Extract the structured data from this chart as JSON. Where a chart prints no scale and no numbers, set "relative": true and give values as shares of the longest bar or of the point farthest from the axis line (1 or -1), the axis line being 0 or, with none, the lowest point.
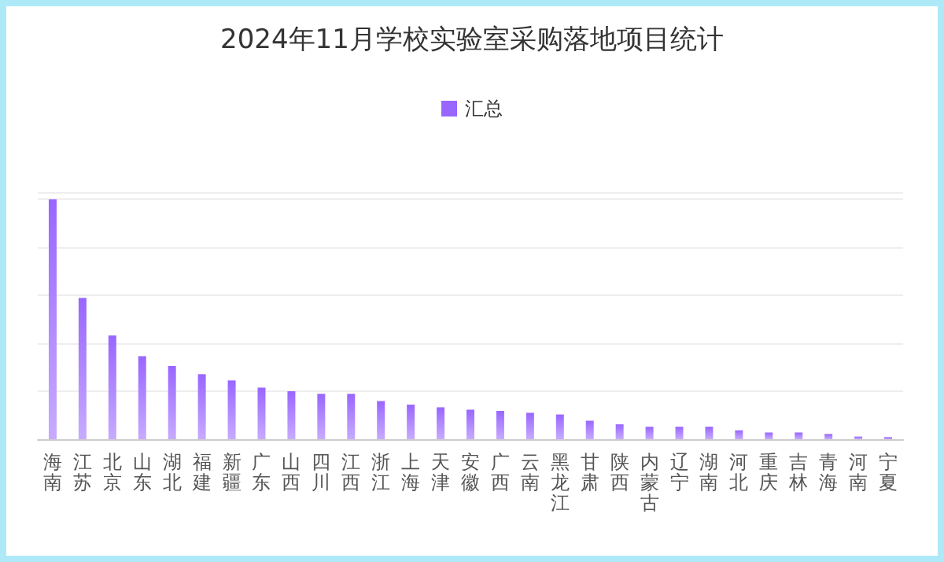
{
  "chart_data": {
    "type": "bar",
    "title": "2024年11月学校实验室采购落地项目统计",
    "relative": true,
    "grid": "y",
    "legend": "top",
    "categories": [
      "海南",
      "江苏",
      "北京",
      "山东",
      "湖北",
      "福建",
      "新疆",
      "广东",
      "山西",
      "四川",
      "江西",
      "浙江",
      "上海",
      "天津",
      "安徽",
      "广西",
      "云南",
      "黑龙江",
      "甘肃",
      "陕西",
      "内蒙古",
      "辽宁",
      "湖南",
      "河北",
      "重庆",
      "吉林",
      "青海",
      "河南",
      "宁夏"
    ],
    "series": [
      {
        "name": "汇总",
        "color": "#9966ff",
        "values": [
          1,
          0.589,
          0.432,
          0.346,
          0.305,
          0.271,
          0.245,
          0.215,
          0.2,
          0.189,
          0.189,
          0.159,
          0.144,
          0.133,
          0.123,
          0.118,
          0.11,
          0.103,
          0.077,
          0.062,
          0.052,
          0.052,
          0.052,
          0.037,
          0.028,
          0.028,
          0.022,
          0.011,
          0.009
        ]
      }
    ]
  }
}
